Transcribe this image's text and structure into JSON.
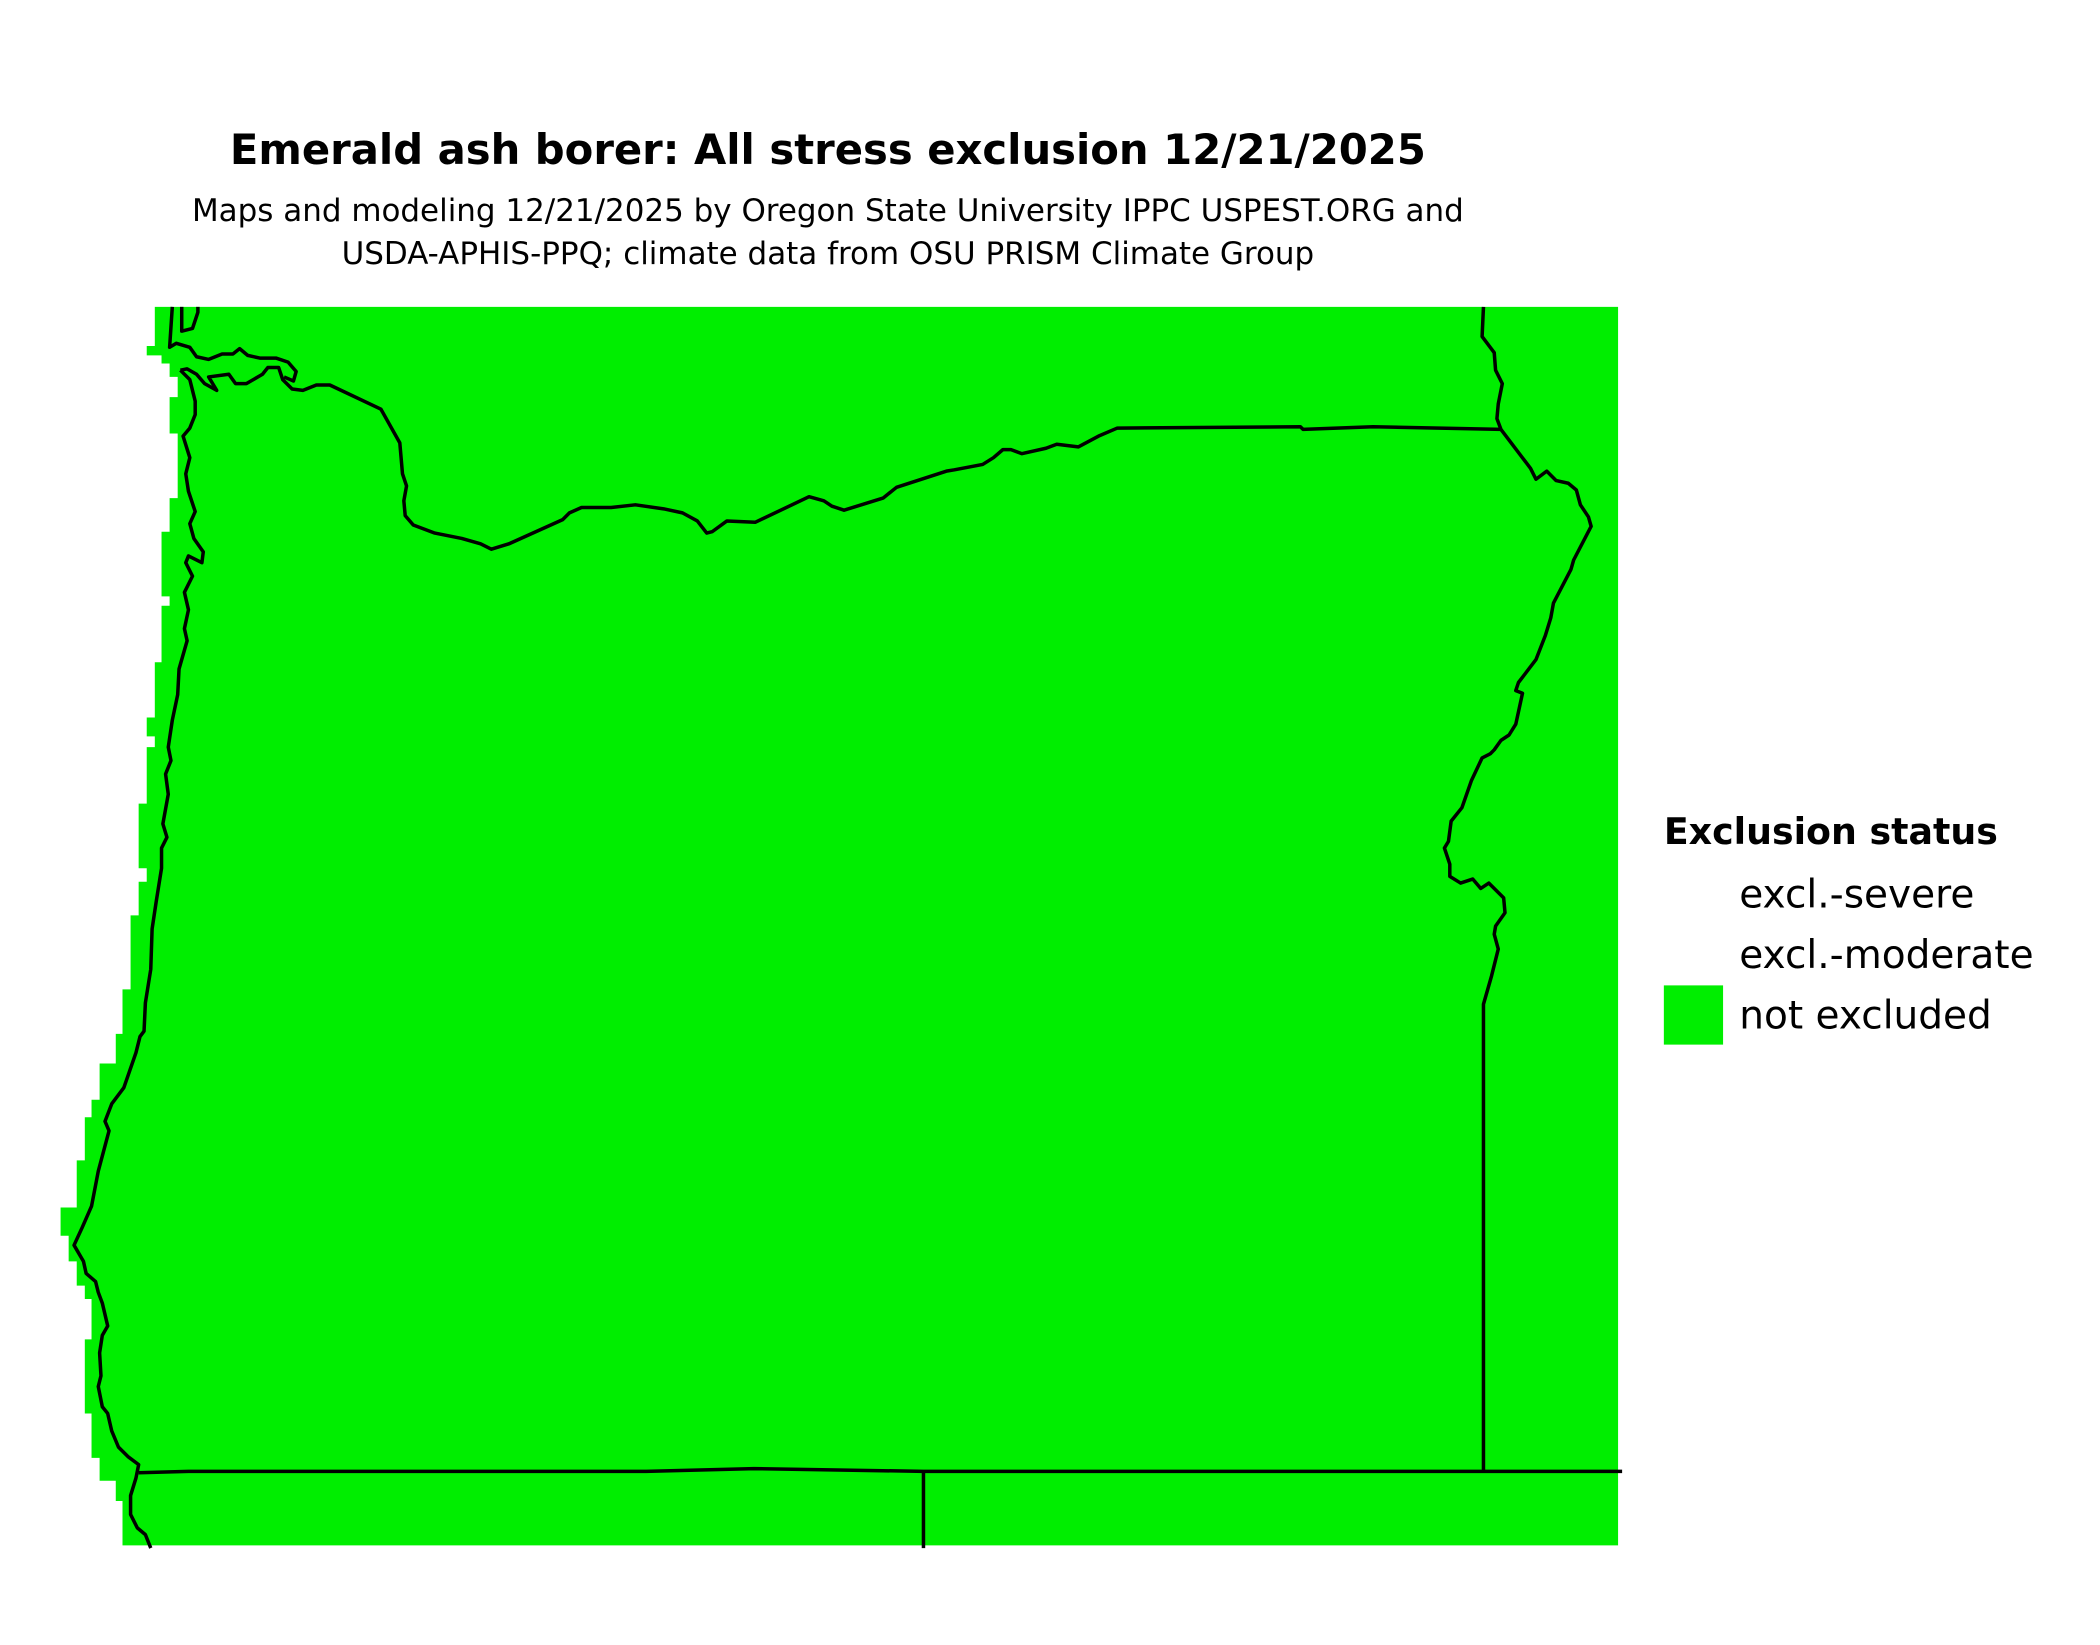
{
  "title": "Emerald ash borer: All stress exclusion 12/21/2025",
  "subtitle_line1": "Maps and modeling 12/21/2025 by Oregon State University IPPC USPEST.ORG and",
  "subtitle_line2": "USDA-APHIS-PPQ; climate data from OSU PRISM Climate Group",
  "legend": {
    "title": "Exclusion status",
    "items": [
      {
        "label": "excl.-severe",
        "color": "#ffffff"
      },
      {
        "label": "excl.-moderate",
        "color": "#ffffff"
      },
      {
        "label": "not excluded",
        "color": "#00ee00"
      }
    ]
  },
  "colors": {
    "not_excluded": "#00ee00",
    "boundary": "#000000"
  }
}
